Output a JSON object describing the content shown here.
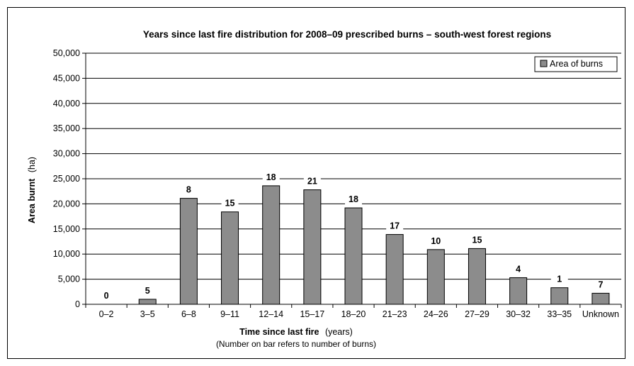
{
  "chart_data": {
    "type": "bar",
    "title": "Years since last fire distribution for 2008–09 prescribed burns – south-west forest regions",
    "xlabel": "Time since last fire",
    "xlabel_unit": "(years)",
    "note": "(Number on bar refers to number of burns)",
    "ylabel": "Area burnt",
    "ylabel_unit": "(ha)",
    "ylim": [
      0,
      50000
    ],
    "yticks": [
      0,
      5000,
      10000,
      15000,
      20000,
      25000,
      30000,
      35000,
      40000,
      45000,
      50000
    ],
    "ytick_labels": [
      "0",
      "5,000",
      "10,000",
      "15,000",
      "20,000",
      "25,000",
      "30,000",
      "35,000",
      "40,000",
      "45,000",
      "50,000"
    ],
    "grid": true,
    "legend": "top-right",
    "categories": [
      "0–2",
      "3–5",
      "6–8",
      "9–11",
      "12–14",
      "15–17",
      "18–20",
      "21–23",
      "24–26",
      "27–29",
      "30–32",
      "33–35",
      "Unknown"
    ],
    "series": [
      {
        "name": "Area of burns",
        "color": "#8c8c8c",
        "values": [
          0,
          1000,
          21100,
          18400,
          23600,
          22800,
          19200,
          13900,
          10900,
          11100,
          5300,
          3300,
          2200
        ]
      }
    ],
    "bar_labels": [
      "0",
      "5",
      "8",
      "15",
      "18",
      "21",
      "18",
      "17",
      "10",
      "15",
      "4",
      "1",
      "7"
    ]
  }
}
